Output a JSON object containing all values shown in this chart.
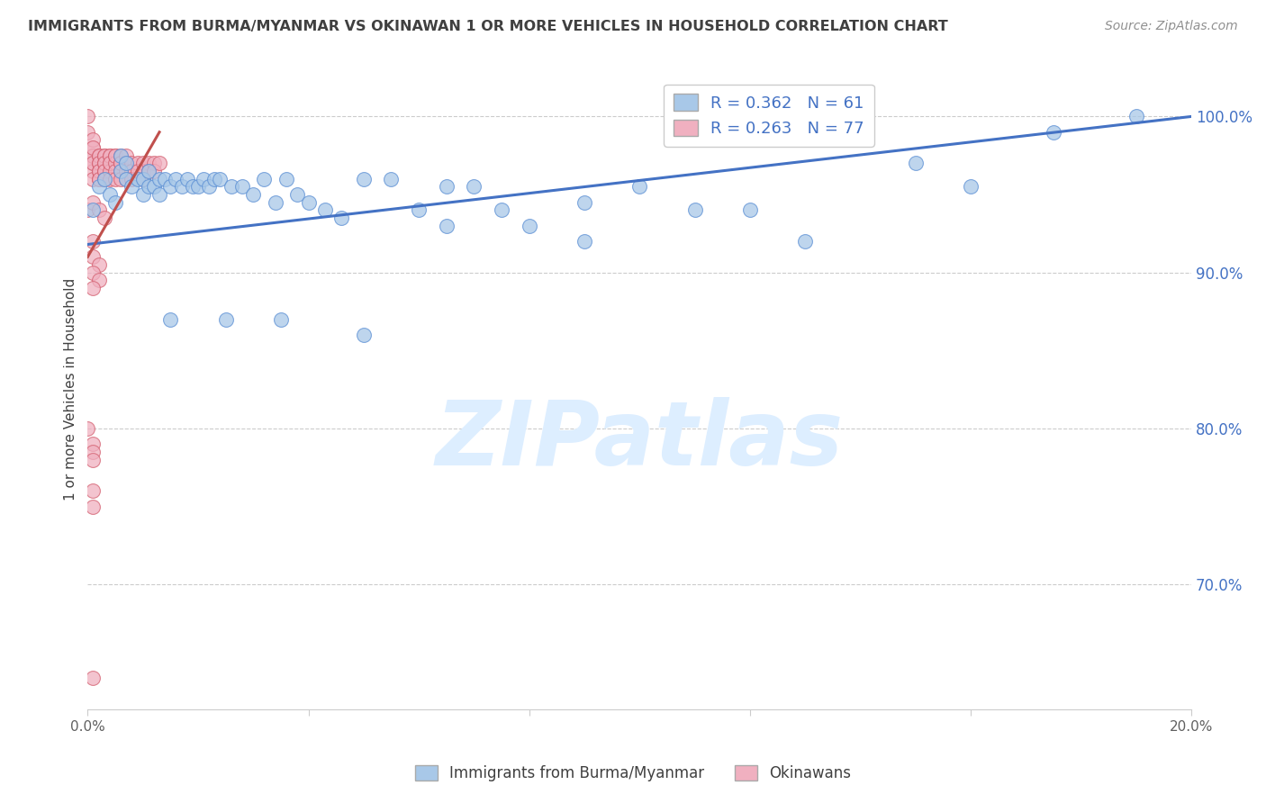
{
  "title": "IMMIGRANTS FROM BURMA/MYANMAR VS OKINAWAN 1 OR MORE VEHICLES IN HOUSEHOLD CORRELATION CHART",
  "source": "Source: ZipAtlas.com",
  "ylabel": "1 or more Vehicles in Household",
  "xlim": [
    0.0,
    0.2
  ],
  "ylim": [
    0.62,
    1.03
  ],
  "yticks": [
    0.7,
    0.8,
    0.9,
    1.0
  ],
  "ytick_labels": [
    "70.0%",
    "80.0%",
    "90.0%",
    "100.0%"
  ],
  "xticks": [
    0.0,
    0.04,
    0.08,
    0.12,
    0.16,
    0.2
  ],
  "xtick_labels": [
    "0.0%",
    "",
    "",
    "",
    "",
    "20.0%"
  ],
  "blue_R": 0.362,
  "blue_N": 61,
  "pink_R": 0.263,
  "pink_N": 77,
  "blue_color": "#a8c8e8",
  "pink_color": "#f0b0c0",
  "blue_edge_color": "#5b8fd4",
  "pink_edge_color": "#d46070",
  "blue_line_color": "#4472c4",
  "pink_line_color": "#c0504d",
  "legend_text_color": "#4472c4",
  "title_color": "#404040",
  "source_color": "#909090",
  "ylabel_color": "#404040",
  "ytick_color": "#4472c4",
  "xtick_color": "#606060",
  "watermark_color": "#ddeeff",
  "grid_color": "#cccccc",
  "background_color": "#ffffff",
  "blue_x": [
    0.001,
    0.002,
    0.003,
    0.004,
    0.005,
    0.006,
    0.006,
    0.007,
    0.007,
    0.008,
    0.009,
    0.01,
    0.01,
    0.011,
    0.011,
    0.012,
    0.013,
    0.013,
    0.014,
    0.015,
    0.016,
    0.017,
    0.018,
    0.019,
    0.02,
    0.021,
    0.022,
    0.023,
    0.024,
    0.026,
    0.028,
    0.03,
    0.032,
    0.034,
    0.036,
    0.038,
    0.04,
    0.043,
    0.046,
    0.05,
    0.055,
    0.06,
    0.065,
    0.07,
    0.075,
    0.08,
    0.09,
    0.1,
    0.11,
    0.13,
    0.16,
    0.065,
    0.09,
    0.12,
    0.15,
    0.175,
    0.19,
    0.05,
    0.035,
    0.025,
    0.015
  ],
  "blue_y": [
    0.94,
    0.955,
    0.96,
    0.95,
    0.945,
    0.965,
    0.975,
    0.96,
    0.97,
    0.955,
    0.96,
    0.95,
    0.96,
    0.955,
    0.965,
    0.955,
    0.96,
    0.95,
    0.96,
    0.955,
    0.96,
    0.955,
    0.96,
    0.955,
    0.955,
    0.96,
    0.955,
    0.96,
    0.96,
    0.955,
    0.955,
    0.95,
    0.96,
    0.945,
    0.96,
    0.95,
    0.945,
    0.94,
    0.935,
    0.96,
    0.96,
    0.94,
    0.955,
    0.955,
    0.94,
    0.93,
    0.945,
    0.955,
    0.94,
    0.92,
    0.955,
    0.93,
    0.92,
    0.94,
    0.97,
    0.99,
    1.0,
    0.86,
    0.87,
    0.87,
    0.87
  ],
  "pink_x": [
    0.0,
    0.0,
    0.001,
    0.001,
    0.001,
    0.001,
    0.001,
    0.001,
    0.001,
    0.001,
    0.001,
    0.002,
    0.002,
    0.002,
    0.002,
    0.002,
    0.002,
    0.002,
    0.002,
    0.003,
    0.003,
    0.003,
    0.003,
    0.003,
    0.003,
    0.003,
    0.003,
    0.004,
    0.004,
    0.004,
    0.004,
    0.004,
    0.004,
    0.005,
    0.005,
    0.005,
    0.005,
    0.005,
    0.006,
    0.006,
    0.006,
    0.006,
    0.006,
    0.007,
    0.007,
    0.007,
    0.007,
    0.008,
    0.008,
    0.008,
    0.009,
    0.009,
    0.01,
    0.01,
    0.01,
    0.011,
    0.011,
    0.012,
    0.012,
    0.013,
    0.0,
    0.001,
    0.002,
    0.003,
    0.001,
    0.001,
    0.002,
    0.001,
    0.002,
    0.001,
    0.0,
    0.001,
    0.001,
    0.001,
    0.001,
    0.001,
    0.001
  ],
  "pink_y": [
    0.99,
    1.0,
    0.98,
    0.985,
    0.975,
    0.97,
    0.965,
    0.96,
    0.975,
    0.97,
    0.98,
    0.975,
    0.97,
    0.965,
    0.96,
    0.975,
    0.97,
    0.965,
    0.96,
    0.975,
    0.97,
    0.965,
    0.96,
    0.975,
    0.97,
    0.965,
    0.96,
    0.975,
    0.97,
    0.965,
    0.96,
    0.975,
    0.97,
    0.975,
    0.97,
    0.965,
    0.96,
    0.975,
    0.97,
    0.965,
    0.96,
    0.975,
    0.97,
    0.975,
    0.97,
    0.965,
    0.96,
    0.97,
    0.965,
    0.96,
    0.97,
    0.965,
    0.97,
    0.965,
    0.96,
    0.97,
    0.965,
    0.97,
    0.965,
    0.97,
    0.94,
    0.945,
    0.94,
    0.935,
    0.92,
    0.91,
    0.905,
    0.9,
    0.895,
    0.89,
    0.8,
    0.79,
    0.785,
    0.78,
    0.76,
    0.75,
    0.64
  ]
}
